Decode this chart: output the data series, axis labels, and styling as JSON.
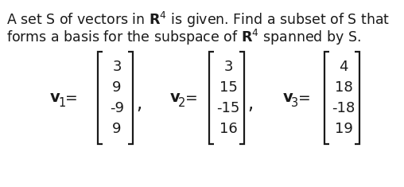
{
  "line1": "A set S of vectors in $\\mathbf{R}^4$ is given. Find a subset of S that",
  "line2": "forms a basis for the subspace of $\\mathbf{R}^4$ spanned by S.",
  "v1_values": [
    "3",
    "9",
    "-9",
    "9"
  ],
  "v2_values": [
    "3",
    "15",
    "-15",
    "16"
  ],
  "v3_values": [
    "4",
    "18",
    "-18",
    "19"
  ],
  "text_color": "#1a1a1a",
  "bg_color": "#ffffff",
  "font_size_title": 12.5,
  "font_size_vector": 13.0,
  "font_size_label": 13.5
}
